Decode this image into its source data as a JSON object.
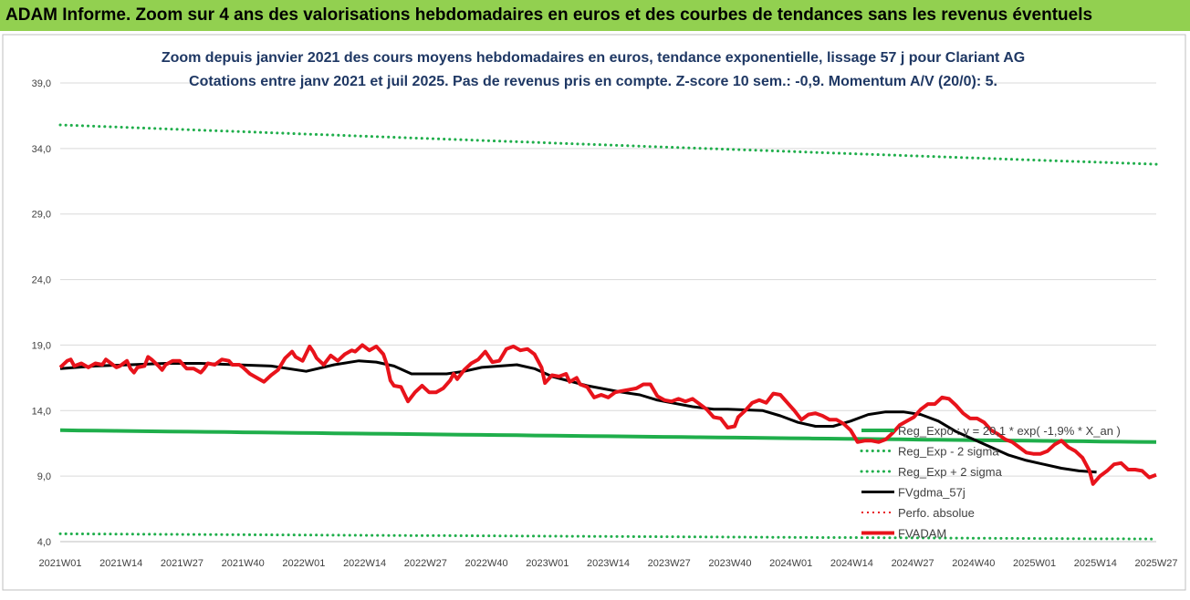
{
  "banner_title": "ADAM Informe. Zoom sur 4 ans des valorisations hebdomadaires en euros et des courbes de tendances sans les revenus éventuels",
  "chart_data": {
    "type": "line",
    "title": "Zoom depuis janvier 2021 des cours moyens hebdomadaires en euros, tendance exponentielle, lissage 57 j pour Clariant AG",
    "subtitle": "Cotations entre janv 2021 et juil 2025. Pas de revenus pris en compte. Z-score 10 sem.: -0,9. Momentum A/V (20/0): 5.",
    "ylim": [
      4,
      39
    ],
    "yticks": [
      "4,0",
      "9,0",
      "14,0",
      "19,0",
      "24,0",
      "29,0",
      "34,0",
      "39,0"
    ],
    "ytick_values": [
      4,
      9,
      14,
      19,
      24,
      29,
      34,
      39
    ],
    "xticks": [
      "2021W01",
      "2021W14",
      "2021W27",
      "2021W40",
      "2022W01",
      "2022W14",
      "2022W27",
      "2022W40",
      "2023W01",
      "2023W14",
      "2023W27",
      "2023W40",
      "2024W01",
      "2024W14",
      "2024W27",
      "2024W40",
      "2025W01",
      "2025W14",
      "2025W27"
    ],
    "x_count": 234,
    "grid": true,
    "legend_position": "right",
    "colors": {
      "green": "#1fae4b",
      "black": "#000000",
      "red": "#e8131b",
      "grid": "#d9d9d9"
    },
    "series": [
      {
        "name": "Reg_Expo : y = 20,1 * exp( -1,9% *  X_an )",
        "style": "solid-green",
        "start": 12.5,
        "end": 11.6
      },
      {
        "name": "Reg_Exp - 2 sigma",
        "style": "dotted-green",
        "start": 4.6,
        "end": 4.2
      },
      {
        "name": "Reg_Exp + 2 sigma",
        "style": "dotted-green",
        "start": 35.8,
        "end": 32.8
      },
      {
        "name": "FVgdma_57j",
        "style": "solid-black",
        "points": [
          [
            0,
            17.2
          ],
          [
            10,
            17.4
          ],
          [
            20,
            17.5
          ],
          [
            30,
            17.6
          ],
          [
            40,
            17.6
          ],
          [
            50,
            17.5
          ],
          [
            60,
            17.4
          ],
          [
            70,
            17.0
          ],
          [
            78,
            17.5
          ],
          [
            85,
            17.8
          ],
          [
            90,
            17.7
          ],
          [
            95,
            17.4
          ],
          [
            100,
            16.8
          ],
          [
            110,
            16.8
          ],
          [
            115,
            17.0
          ],
          [
            120,
            17.3
          ],
          [
            130,
            17.5
          ],
          [
            135,
            17.2
          ],
          [
            140,
            16.6
          ],
          [
            150,
            15.9
          ],
          [
            160,
            15.4
          ],
          [
            165,
            15.2
          ],
          [
            170,
            14.8
          ],
          [
            180,
            14.3
          ],
          [
            186,
            14.1
          ],
          [
            190,
            14.1
          ],
          [
            200,
            14.0
          ],
          [
            205,
            13.6
          ],
          [
            210,
            13.1
          ],
          [
            215,
            12.8
          ],
          [
            220,
            12.8
          ],
          [
            225,
            13.2
          ],
          [
            230,
            13.7
          ],
          [
            235,
            13.9
          ],
          [
            240,
            13.9
          ],
          [
            245,
            13.7
          ],
          [
            250,
            13.2
          ],
          [
            255,
            12.4
          ],
          [
            260,
            11.8
          ],
          [
            265,
            11.2
          ],
          [
            270,
            10.6
          ],
          [
            275,
            10.2
          ],
          [
            280,
            9.9
          ],
          [
            285,
            9.6
          ],
          [
            290,
            9.4
          ],
          [
            295,
            9.3
          ]
        ]
      },
      {
        "name": "Perfo. absolue",
        "style": "dotted-red",
        "points": []
      },
      {
        "name": "FVADAM",
        "style": "solid-red",
        "points": [
          [
            0,
            17.3
          ],
          [
            2,
            17.8
          ],
          [
            3,
            17.9
          ],
          [
            4,
            17.4
          ],
          [
            6,
            17.6
          ],
          [
            8,
            17.3
          ],
          [
            10,
            17.6
          ],
          [
            12,
            17.5
          ],
          [
            13,
            17.9
          ],
          [
            15,
            17.5
          ],
          [
            16,
            17.3
          ],
          [
            17,
            17.4
          ],
          [
            19,
            17.8
          ],
          [
            20,
            17.2
          ],
          [
            21,
            16.9
          ],
          [
            22,
            17.3
          ],
          [
            24,
            17.4
          ],
          [
            25,
            18.1
          ],
          [
            26,
            17.9
          ],
          [
            28,
            17.4
          ],
          [
            29,
            17.1
          ],
          [
            30,
            17.5
          ],
          [
            32,
            17.8
          ],
          [
            34,
            17.8
          ],
          [
            35,
            17.5
          ],
          [
            36,
            17.2
          ],
          [
            38,
            17.2
          ],
          [
            40,
            16.9
          ],
          [
            41,
            17.2
          ],
          [
            42,
            17.6
          ],
          [
            44,
            17.5
          ],
          [
            46,
            17.9
          ],
          [
            48,
            17.8
          ],
          [
            49,
            17.5
          ],
          [
            51,
            17.5
          ],
          [
            52,
            17.3
          ],
          [
            54,
            16.8
          ],
          [
            56,
            16.5
          ],
          [
            58,
            16.2
          ],
          [
            60,
            16.7
          ],
          [
            62,
            17.1
          ],
          [
            64,
            18.0
          ],
          [
            66,
            18.5
          ],
          [
            67,
            18.1
          ],
          [
            69,
            17.8
          ],
          [
            71,
            18.9
          ],
          [
            72,
            18.5
          ],
          [
            73,
            18.0
          ],
          [
            75,
            17.5
          ],
          [
            77,
            18.2
          ],
          [
            79,
            17.8
          ],
          [
            81,
            18.3
          ],
          [
            83,
            18.6
          ],
          [
            84,
            18.5
          ],
          [
            86,
            19.0
          ],
          [
            88,
            18.6
          ],
          [
            90,
            18.9
          ],
          [
            92,
            18.3
          ],
          [
            93,
            17.5
          ],
          [
            94,
            16.3
          ],
          [
            95,
            15.9
          ],
          [
            97,
            15.8
          ],
          [
            99,
            14.7
          ],
          [
            101,
            15.4
          ],
          [
            103,
            15.9
          ],
          [
            105,
            15.4
          ],
          [
            107,
            15.4
          ],
          [
            109,
            15.7
          ],
          [
            111,
            16.3
          ],
          [
            112,
            16.8
          ],
          [
            113,
            16.4
          ],
          [
            115,
            17.1
          ],
          [
            117,
            17.6
          ],
          [
            119,
            17.9
          ],
          [
            121,
            18.5
          ],
          [
            123,
            17.7
          ],
          [
            125,
            17.8
          ],
          [
            127,
            18.7
          ],
          [
            129,
            18.9
          ],
          [
            131,
            18.6
          ],
          [
            133,
            18.7
          ],
          [
            135,
            18.3
          ],
          [
            137,
            17.3
          ],
          [
            138,
            16.1
          ],
          [
            140,
            16.7
          ],
          [
            142,
            16.6
          ],
          [
            144,
            16.8
          ],
          [
            145,
            16.2
          ],
          [
            147,
            16.5
          ],
          [
            148,
            16.0
          ],
          [
            150,
            15.8
          ],
          [
            152,
            15.0
          ],
          [
            154,
            15.2
          ],
          [
            156,
            15.0
          ],
          [
            158,
            15.4
          ],
          [
            160,
            15.5
          ],
          [
            162,
            15.6
          ],
          [
            164,
            15.7
          ],
          [
            166,
            16.0
          ],
          [
            168,
            16.0
          ],
          [
            170,
            15.1
          ],
          [
            172,
            14.8
          ],
          [
            174,
            14.7
          ],
          [
            176,
            14.9
          ],
          [
            178,
            14.7
          ],
          [
            180,
            14.9
          ],
          [
            182,
            14.5
          ],
          [
            184,
            14.1
          ],
          [
            186,
            13.5
          ],
          [
            188,
            13.4
          ],
          [
            190,
            12.7
          ],
          [
            192,
            12.8
          ],
          [
            193,
            13.5
          ],
          [
            195,
            14.0
          ],
          [
            197,
            14.6
          ],
          [
            199,
            14.8
          ],
          [
            201,
            14.6
          ],
          [
            203,
            15.3
          ],
          [
            205,
            15.2
          ],
          [
            207,
            14.6
          ],
          [
            209,
            14.0
          ],
          [
            211,
            13.3
          ],
          [
            213,
            13.7
          ],
          [
            215,
            13.8
          ],
          [
            217,
            13.6
          ],
          [
            219,
            13.3
          ],
          [
            221,
            13.3
          ],
          [
            223,
            13.0
          ],
          [
            225,
            12.5
          ],
          [
            227,
            11.6
          ],
          [
            229,
            11.7
          ],
          [
            231,
            11.7
          ],
          [
            233,
            11.6
          ],
          [
            235,
            11.8
          ],
          [
            237,
            12.3
          ],
          [
            239,
            12.9
          ],
          [
            241,
            13.2
          ],
          [
            243,
            13.5
          ],
          [
            245,
            14.1
          ],
          [
            247,
            14.5
          ],
          [
            249,
            14.5
          ],
          [
            251,
            15.0
          ],
          [
            253,
            14.9
          ],
          [
            255,
            14.4
          ],
          [
            257,
            13.8
          ],
          [
            259,
            13.4
          ],
          [
            261,
            13.4
          ],
          [
            263,
            13.1
          ],
          [
            265,
            12.5
          ],
          [
            267,
            12.2
          ],
          [
            269,
            11.8
          ],
          [
            271,
            11.6
          ],
          [
            273,
            11.2
          ],
          [
            275,
            10.8
          ],
          [
            277,
            10.7
          ],
          [
            279,
            10.7
          ],
          [
            281,
            10.9
          ],
          [
            283,
            11.4
          ],
          [
            285,
            11.7
          ],
          [
            287,
            11.2
          ],
          [
            289,
            10.9
          ],
          [
            291,
            10.4
          ],
          [
            293,
            9.4
          ],
          [
            294,
            8.4
          ],
          [
            296,
            9.0
          ],
          [
            298,
            9.4
          ],
          [
            300,
            9.9
          ],
          [
            302,
            10.0
          ],
          [
            304,
            9.5
          ],
          [
            306,
            9.5
          ],
          [
            308,
            9.4
          ],
          [
            310,
            8.9
          ],
          [
            312,
            9.1
          ]
        ]
      }
    ]
  }
}
